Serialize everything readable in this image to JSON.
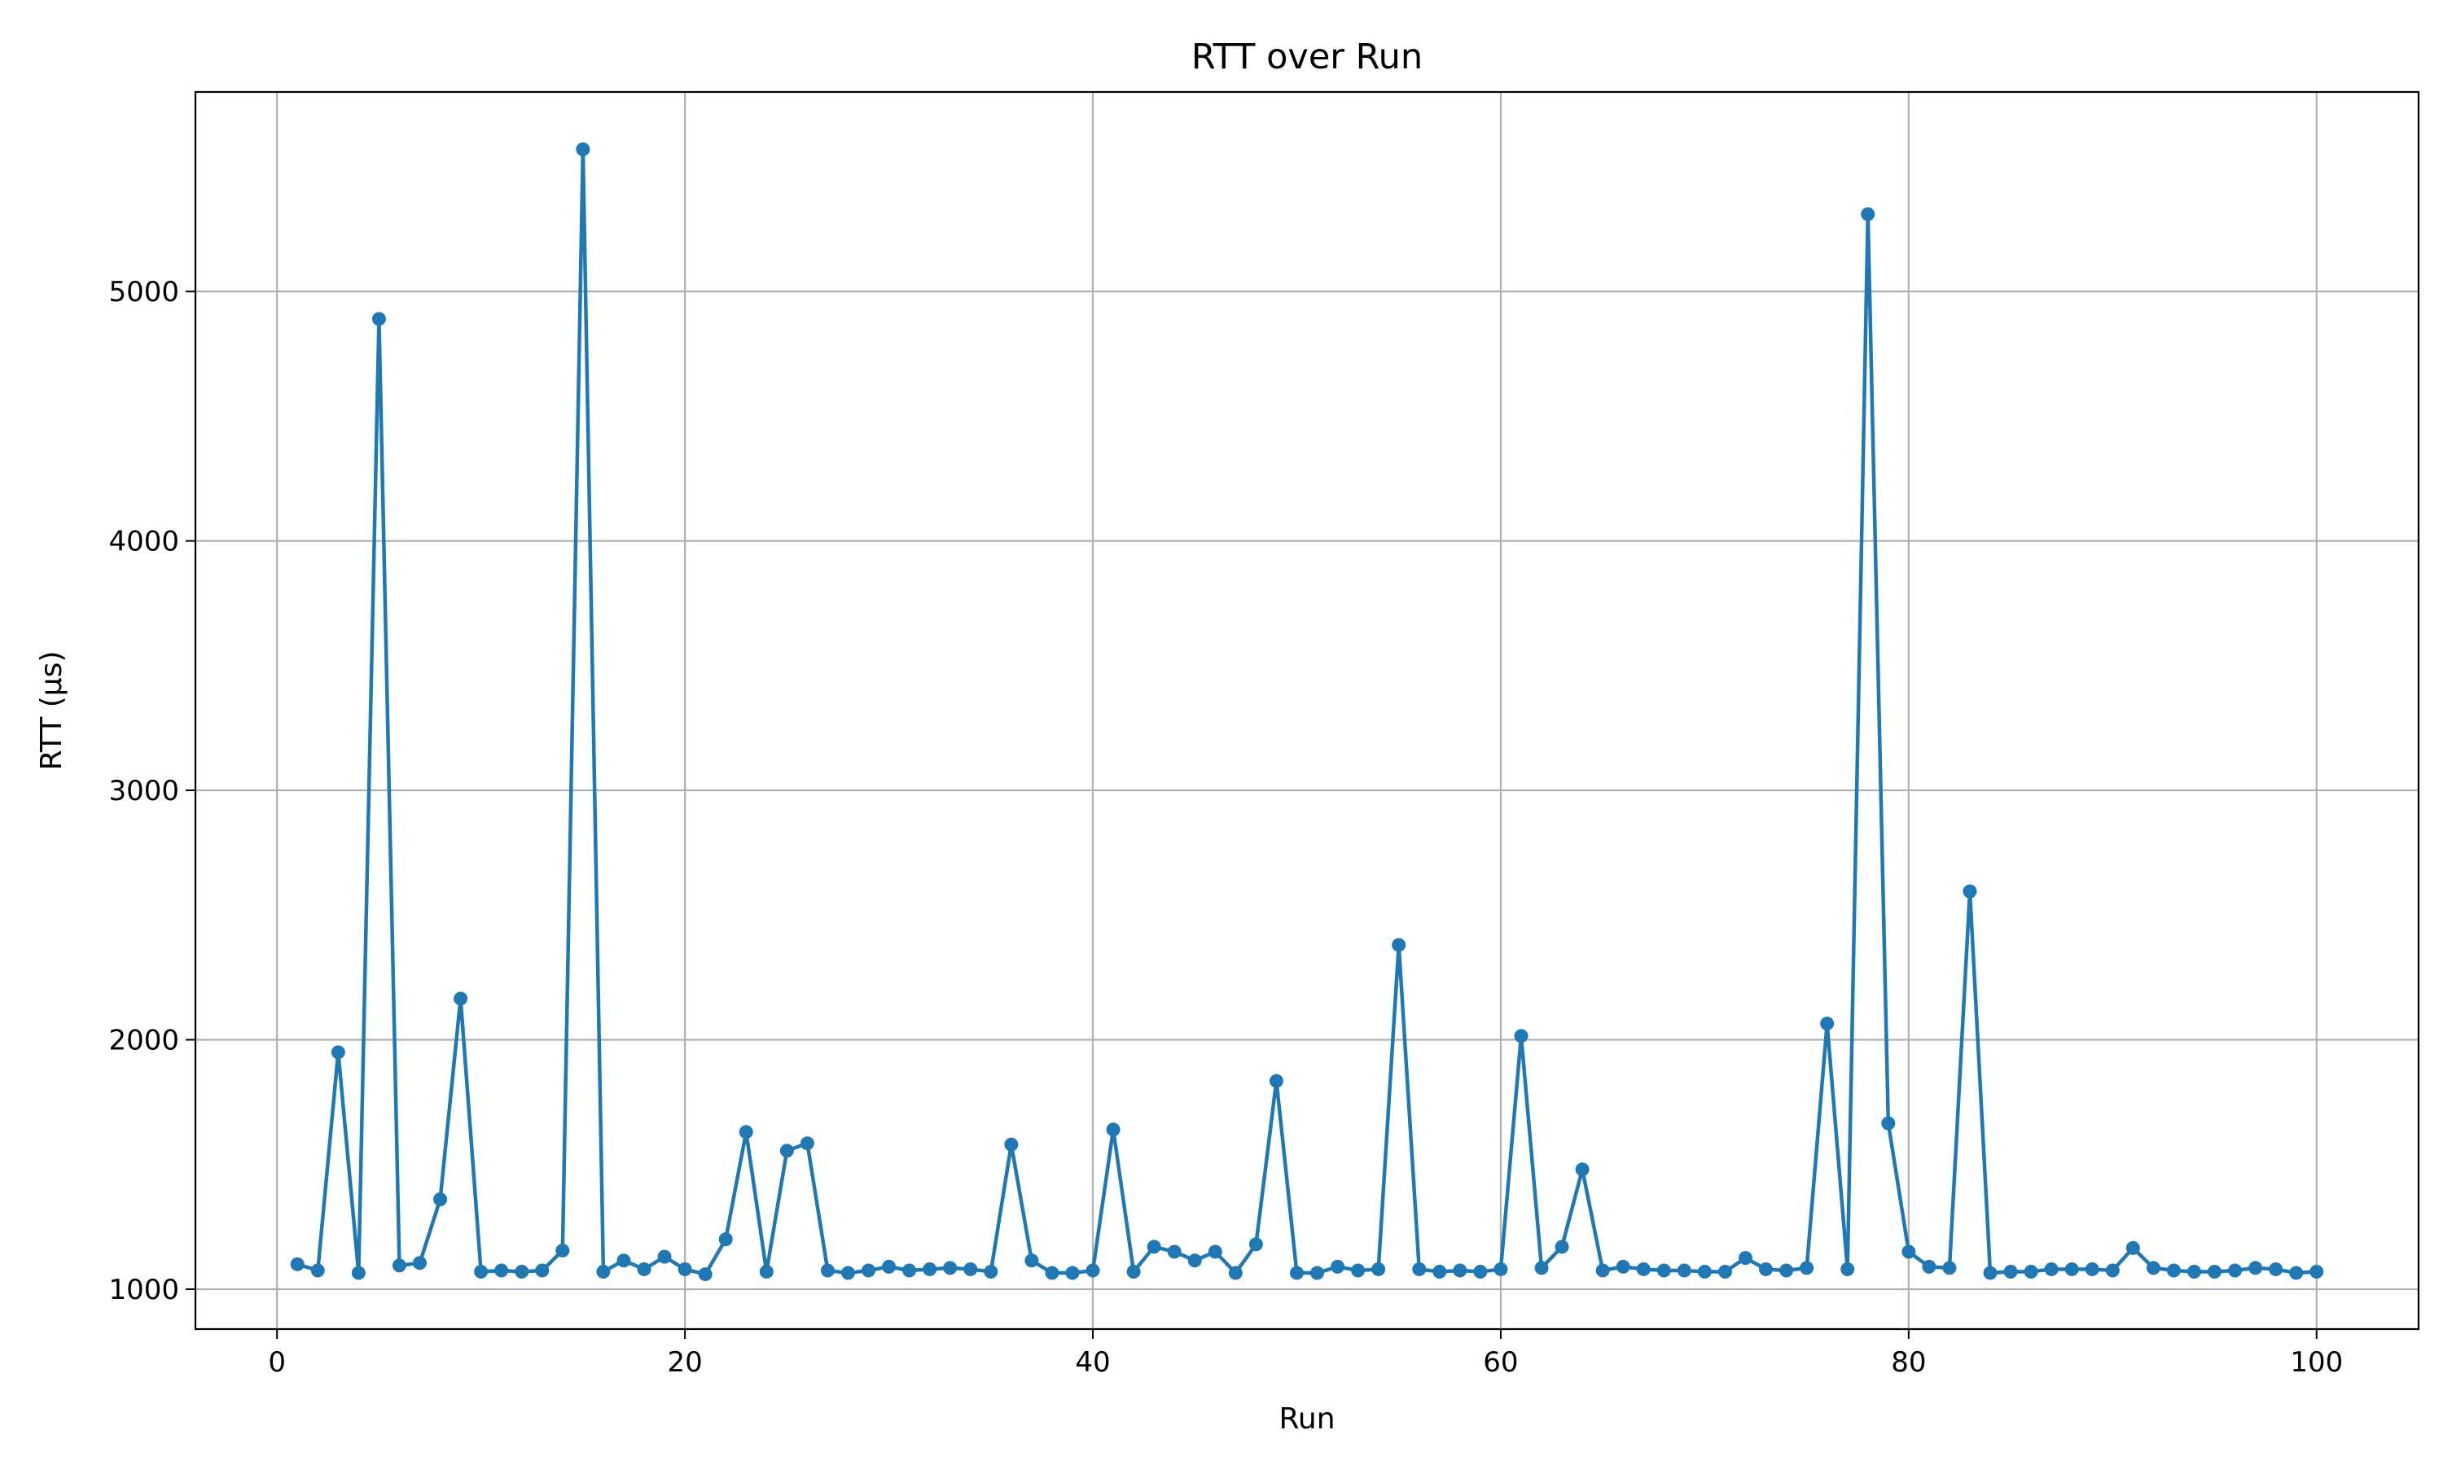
{
  "chart_data": {
    "type": "line",
    "title": "RTT over Run",
    "xlabel": "Run",
    "ylabel": "RTT (µs)",
    "xlim": [
      -4,
      105
    ],
    "ylim": [
      840,
      5800
    ],
    "xticks": [
      0,
      20,
      40,
      60,
      80,
      100
    ],
    "yticks": [
      1000,
      2000,
      3000,
      4000,
      5000
    ],
    "grid": true,
    "marker": "circle",
    "color": "#1f77b4",
    "x": [
      1,
      2,
      3,
      4,
      5,
      6,
      7,
      8,
      9,
      10,
      11,
      12,
      13,
      14,
      15,
      16,
      17,
      18,
      19,
      20,
      21,
      22,
      23,
      24,
      25,
      26,
      27,
      28,
      29,
      30,
      31,
      32,
      33,
      34,
      35,
      36,
      37,
      38,
      39,
      40,
      41,
      42,
      43,
      44,
      45,
      46,
      47,
      48,
      49,
      50,
      51,
      52,
      53,
      54,
      55,
      56,
      57,
      58,
      59,
      60,
      61,
      62,
      63,
      64,
      65,
      66,
      67,
      68,
      69,
      70,
      71,
      72,
      73,
      74,
      75,
      76,
      77,
      78,
      79,
      80,
      81,
      82,
      83,
      84,
      85,
      86,
      87,
      88,
      89,
      90,
      91,
      92,
      93,
      94,
      95,
      96,
      97,
      98,
      99,
      100
    ],
    "values": [
      1100,
      1075,
      1950,
      1065,
      4890,
      1095,
      1105,
      1360,
      2165,
      1070,
      1075,
      1070,
      1075,
      1155,
      5570,
      1070,
      1115,
      1080,
      1130,
      1080,
      1060,
      1200,
      1630,
      1070,
      1555,
      1585,
      1075,
      1065,
      1075,
      1090,
      1075,
      1080,
      1085,
      1080,
      1070,
      1580,
      1115,
      1065,
      1065,
      1075,
      1640,
      1070,
      1170,
      1150,
      1115,
      1150,
      1065,
      1180,
      1835,
      1065,
      1065,
      1090,
      1075,
      1080,
      2380,
      1080,
      1070,
      1075,
      1070,
      1080,
      2015,
      1085,
      1170,
      1480,
      1075,
      1090,
      1080,
      1075,
      1075,
      1070,
      1070,
      1125,
      1080,
      1075,
      1085,
      2065,
      1080,
      5310,
      1665,
      1150,
      1090,
      1085,
      2595,
      1065,
      1070,
      1070,
      1080,
      1080,
      1080,
      1075,
      1165,
      1085,
      1075,
      1070,
      1070,
      1075,
      1085,
      1080,
      1065,
      1070
    ]
  }
}
